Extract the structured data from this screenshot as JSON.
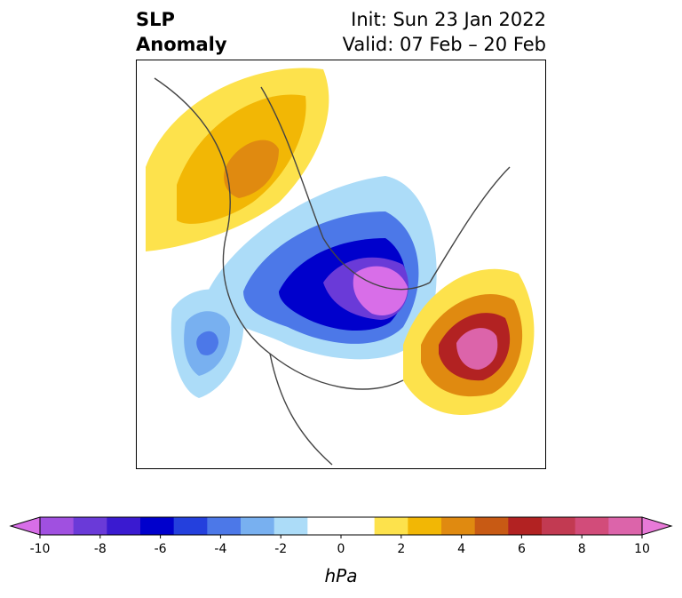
{
  "header": {
    "left_line1": "SLP",
    "left_line2": "Anomaly",
    "right_line1": "Init: Sun 23 Jan 2022",
    "right_line2": "Valid: 07 Feb – 20 Feb"
  },
  "colorbar": {
    "unit": "hPa",
    "ticks": [
      "-10",
      "-8",
      "-6",
      "-4",
      "-2",
      "0",
      "2",
      "4",
      "6",
      "8",
      "10"
    ],
    "colors": [
      "#d86ee8",
      "#a050e0",
      "#6a3ad8",
      "#3a1ad0",
      "#0000cc",
      "#2440dd",
      "#4c78e8",
      "#78b0f0",
      "#acdcf8",
      "#ffffff",
      "#ffffff",
      "#fde24c",
      "#f2b705",
      "#e08a10",
      "#c85a14",
      "#b22222",
      "#c23a52",
      "#d24c7a",
      "#dc64aa",
      "#e87ad8"
    ]
  },
  "map": {
    "projection": "polar-stereographic-north",
    "features": [
      "positive anomaly over eastern Europe",
      "negative anomaly over Arctic",
      "positive anomaly over North Atlantic"
    ]
  }
}
